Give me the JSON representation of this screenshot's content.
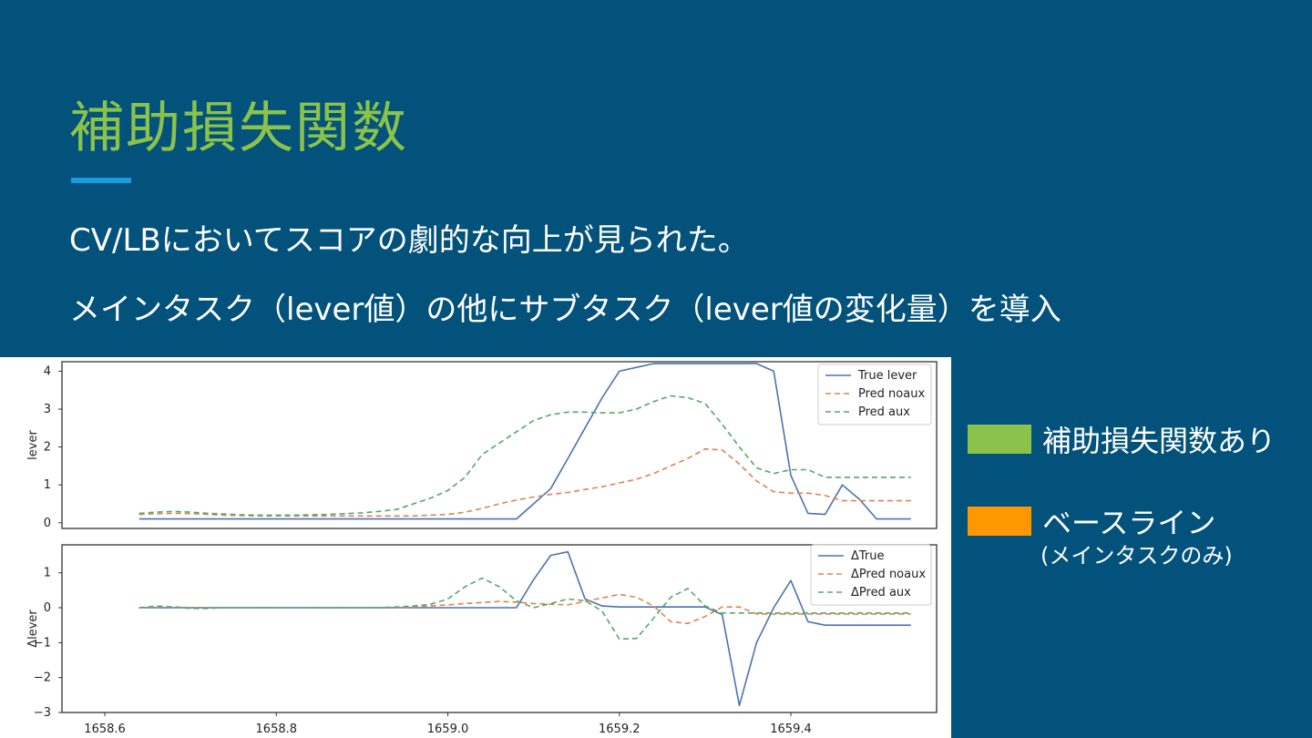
{
  "slide": {
    "title": "補助損失関数",
    "bullets": [
      "CV/LBにおいてスコアの劇的な向上が見られた。",
      "メインタスク（lever値）の他にサブタスク（lever値の変化量）を導入"
    ]
  },
  "side_legend": {
    "items": [
      {
        "label": "補助損失関数あり",
        "sub": "",
        "color": "#8bc34a"
      },
      {
        "label": "ベースライン",
        "sub": "(メインタスクのみ)",
        "color": "#ff9800"
      }
    ]
  },
  "colors": {
    "background": "#02527c",
    "title": "#8bc34a",
    "true": "#4c72b0",
    "noaux": "#dd8452",
    "aux": "#55a868"
  },
  "chart_data": [
    {
      "type": "line",
      "ylabel": "lever",
      "xlabel": "",
      "ylim": [
        -0.15,
        4.25
      ],
      "yticks": [
        0,
        1,
        2,
        3,
        4
      ],
      "grid": false,
      "legend_position": "top-right",
      "x": [
        1658.64,
        1658.66,
        1658.68,
        1658.7,
        1658.72,
        1658.74,
        1658.76,
        1658.78,
        1658.8,
        1658.82,
        1658.84,
        1658.86,
        1658.88,
        1658.9,
        1658.92,
        1658.94,
        1658.96,
        1658.98,
        1659.0,
        1659.02,
        1659.04,
        1659.06,
        1659.08,
        1659.1,
        1659.12,
        1659.14,
        1659.16,
        1659.18,
        1659.2,
        1659.22,
        1659.24,
        1659.26,
        1659.28,
        1659.3,
        1659.32,
        1659.34,
        1659.36,
        1659.38,
        1659.4,
        1659.42,
        1659.44,
        1659.46,
        1659.48,
        1659.5,
        1659.52,
        1659.54
      ],
      "series": [
        {
          "name": "True lever",
          "style": "solid",
          "values": [
            0.1,
            0.1,
            0.1,
            0.1,
            0.1,
            0.1,
            0.1,
            0.1,
            0.1,
            0.1,
            0.1,
            0.1,
            0.1,
            0.1,
            0.1,
            0.1,
            0.1,
            0.1,
            0.1,
            0.1,
            0.1,
            0.1,
            0.1,
            0.5,
            0.9,
            1.7,
            2.5,
            3.3,
            4.0,
            4.1,
            4.2,
            4.2,
            4.2,
            4.2,
            4.2,
            4.2,
            4.2,
            4.0,
            1.25,
            0.25,
            0.22,
            1.0,
            0.62,
            0.1,
            0.1,
            0.1
          ]
        },
        {
          "name": "Pred noaux",
          "style": "dashed",
          "values": [
            0.22,
            0.24,
            0.25,
            0.24,
            0.22,
            0.2,
            0.19,
            0.18,
            0.18,
            0.18,
            0.18,
            0.18,
            0.18,
            0.18,
            0.18,
            0.18,
            0.18,
            0.2,
            0.22,
            0.28,
            0.38,
            0.5,
            0.6,
            0.68,
            0.75,
            0.8,
            0.88,
            0.95,
            1.05,
            1.15,
            1.3,
            1.5,
            1.7,
            1.95,
            1.92,
            1.55,
            1.1,
            0.82,
            0.78,
            0.78,
            0.72,
            0.58,
            0.58,
            0.58,
            0.58,
            0.58
          ]
        },
        {
          "name": "Pred aux",
          "style": "dashed",
          "values": [
            0.25,
            0.28,
            0.3,
            0.28,
            0.25,
            0.23,
            0.21,
            0.2,
            0.2,
            0.2,
            0.21,
            0.22,
            0.24,
            0.26,
            0.3,
            0.35,
            0.5,
            0.65,
            0.85,
            1.2,
            1.8,
            2.1,
            2.4,
            2.7,
            2.85,
            2.92,
            2.92,
            2.9,
            2.9,
            3.0,
            3.2,
            3.35,
            3.3,
            3.15,
            2.6,
            2.0,
            1.45,
            1.3,
            1.4,
            1.4,
            1.2,
            1.2,
            1.2,
            1.2,
            1.2,
            1.2
          ]
        }
      ]
    },
    {
      "type": "line",
      "ylabel": "Δlever",
      "xlabel": "",
      "ylim": [
        -3.0,
        1.8
      ],
      "yticks": [
        1,
        0,
        -1,
        -2,
        -3
      ],
      "xticks": [
        1658.6,
        1658.8,
        1659.0,
        1659.2,
        1659.4
      ],
      "grid": false,
      "legend_position": "top-right",
      "x": [
        1658.64,
        1658.66,
        1658.68,
        1658.7,
        1658.72,
        1658.74,
        1658.76,
        1658.78,
        1658.8,
        1658.82,
        1658.84,
        1658.86,
        1658.88,
        1658.9,
        1658.92,
        1658.94,
        1658.96,
        1658.98,
        1659.0,
        1659.02,
        1659.04,
        1659.06,
        1659.08,
        1659.1,
        1659.12,
        1659.14,
        1659.16,
        1659.18,
        1659.2,
        1659.22,
        1659.24,
        1659.26,
        1659.28,
        1659.3,
        1659.32,
        1659.34,
        1659.36,
        1659.38,
        1659.4,
        1659.42,
        1659.44,
        1659.46,
        1659.48,
        1659.5,
        1659.52,
        1659.54
      ],
      "series": [
        {
          "name": "ΔTrue",
          "style": "solid",
          "values": [
            0,
            0,
            0,
            0,
            0,
            0,
            0,
            0,
            0,
            0,
            0,
            0,
            0,
            0,
            0,
            0,
            0,
            0,
            0,
            0,
            0,
            0,
            0,
            0.8,
            1.5,
            1.6,
            0.25,
            0.05,
            0.02,
            0.02,
            0.02,
            0.02,
            0.02,
            0.02,
            -0.2,
            -2.8,
            -1.0,
            0.0,
            0.78,
            -0.4,
            -0.5,
            -0.5,
            -0.5,
            -0.5,
            -0.5,
            -0.5
          ]
        },
        {
          "name": "ΔPred noaux",
          "style": "dashed",
          "values": [
            0,
            0.02,
            0.02,
            0,
            0,
            0,
            0,
            0,
            0,
            0,
            0,
            0,
            0,
            0,
            0,
            0,
            0.02,
            0.05,
            0.08,
            0.12,
            0.15,
            0.18,
            0.16,
            0.12,
            0.1,
            0.08,
            0.18,
            0.28,
            0.38,
            0.3,
            0.05,
            -0.4,
            -0.45,
            -0.25,
            0.02,
            0.02,
            -0.18,
            -0.18,
            -0.18,
            -0.18,
            -0.18,
            -0.18,
            -0.18,
            -0.18,
            -0.18,
            -0.18
          ]
        },
        {
          "name": "ΔPred aux",
          "style": "dashed",
          "values": [
            0,
            0.05,
            0.02,
            -0.02,
            -0.02,
            0,
            0,
            0,
            0,
            0,
            0,
            0,
            0,
            0,
            0,
            0.02,
            0.05,
            0.1,
            0.25,
            0.6,
            0.85,
            0.6,
            0.2,
            0,
            0.12,
            0.25,
            0.2,
            -0.1,
            -0.9,
            -0.88,
            -0.3,
            0.3,
            0.55,
            0.05,
            -0.15,
            -0.15,
            -0.15,
            -0.15,
            -0.15,
            -0.15,
            -0.15,
            -0.15,
            -0.15,
            -0.15,
            -0.15,
            -0.15
          ]
        }
      ]
    }
  ]
}
